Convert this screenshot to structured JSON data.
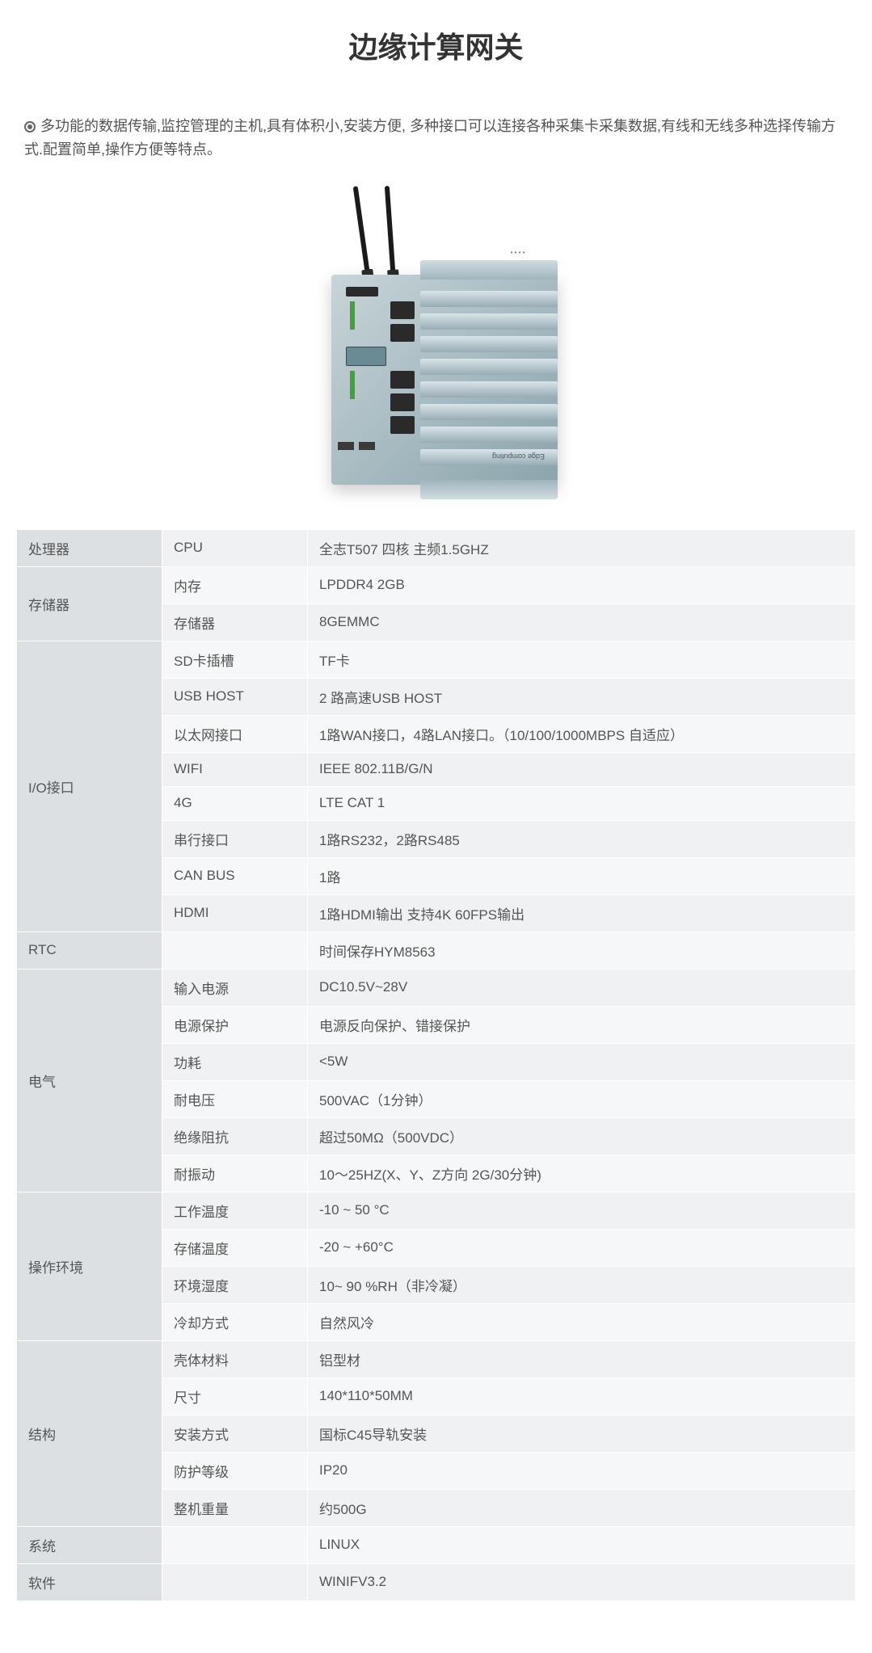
{
  "title": "边缘计算网关",
  "description": "多功能的数据传输,监控管理的主机,具有体积小,安装方便, 多种接口可以连接各种采集卡采集数据,有线和无线多种选择传输方式.配置简单,操作方便等特点。",
  "device_label": "Edge computing",
  "spec_groups": [
    {
      "name": "处理器",
      "rows": [
        {
          "label": "CPU",
          "value": "全志T507 四核 主频1.5GHZ"
        }
      ]
    },
    {
      "name": "存储器",
      "rows": [
        {
          "label": "内存",
          "value": "LPDDR4 2GB"
        },
        {
          "label": "存储器",
          "value": "8GEMMC"
        }
      ]
    },
    {
      "name": "I/O接口",
      "rows": [
        {
          "label": "SD卡插槽",
          "value": "TF卡"
        },
        {
          "label": "USB HOST",
          "value": "2 路高速USB HOST"
        },
        {
          "label": "以太网接口",
          "value": "1路WAN接口，4路LAN接口。（10/100/1000MBPS 自适应）"
        },
        {
          "label": "WIFI",
          "value": "IEEE 802.11B/G/N"
        },
        {
          "label": "4G",
          "value": "LTE CAT 1"
        },
        {
          "label": "串行接口",
          "value": "1路RS232，2路RS485"
        },
        {
          "label": "CAN BUS",
          "value": "1路"
        },
        {
          "label": "HDMI",
          "value": "1路HDMI输出 支持4K 60FPS输出"
        }
      ]
    },
    {
      "name": "RTC",
      "rows": [
        {
          "label": "",
          "value": "时间保存HYM8563"
        }
      ]
    },
    {
      "name": "电气",
      "rows": [
        {
          "label": "输入电源",
          "value": "DC10.5V~28V"
        },
        {
          "label": "电源保护",
          "value": "电源反向保护、错接保护"
        },
        {
          "label": "功耗",
          "value": "<5W"
        },
        {
          "label": "耐电压",
          "value": "500VAC（1分钟）"
        },
        {
          "label": "绝缘阻抗",
          "value": "超过50MΩ（500VDC）"
        },
        {
          "label": "耐振动",
          "value": "10～25HZ(X、Y、Z方向 2G/30分钟)"
        }
      ]
    },
    {
      "name": "操作环境",
      "rows": [
        {
          "label": "工作温度",
          "value": "-10 ~ 50 °C"
        },
        {
          "label": "存储温度",
          "value": "-20 ~ +60°C"
        },
        {
          "label": "环境湿度",
          "value": "10~ 90 %RH（非冷凝）"
        },
        {
          "label": "冷却方式",
          "value": "自然风冷"
        }
      ]
    },
    {
      "name": "结构",
      "rows": [
        {
          "label": "壳体材料",
          "value": "铝型材"
        },
        {
          "label": "尺寸",
          "value": "140*110*50MM"
        },
        {
          "label": "安装方式",
          "value": "国标C45导轨安装"
        },
        {
          "label": "防护等级",
          "value": "IP20"
        },
        {
          "label": "整机重量",
          "value": "约500G"
        }
      ]
    },
    {
      "name": "系统",
      "rows": [
        {
          "label": "",
          "value": "LINUX"
        }
      ]
    },
    {
      "name": "软件",
      "rows": [
        {
          "label": "",
          "value": "WINIFV3.2"
        }
      ]
    }
  ],
  "colors": {
    "group_bg": "#dce0e3",
    "row_bg": "#eff1f2",
    "row_alt_bg": "#f6f7f8",
    "text": "#555555",
    "border": "#ffffff"
  }
}
